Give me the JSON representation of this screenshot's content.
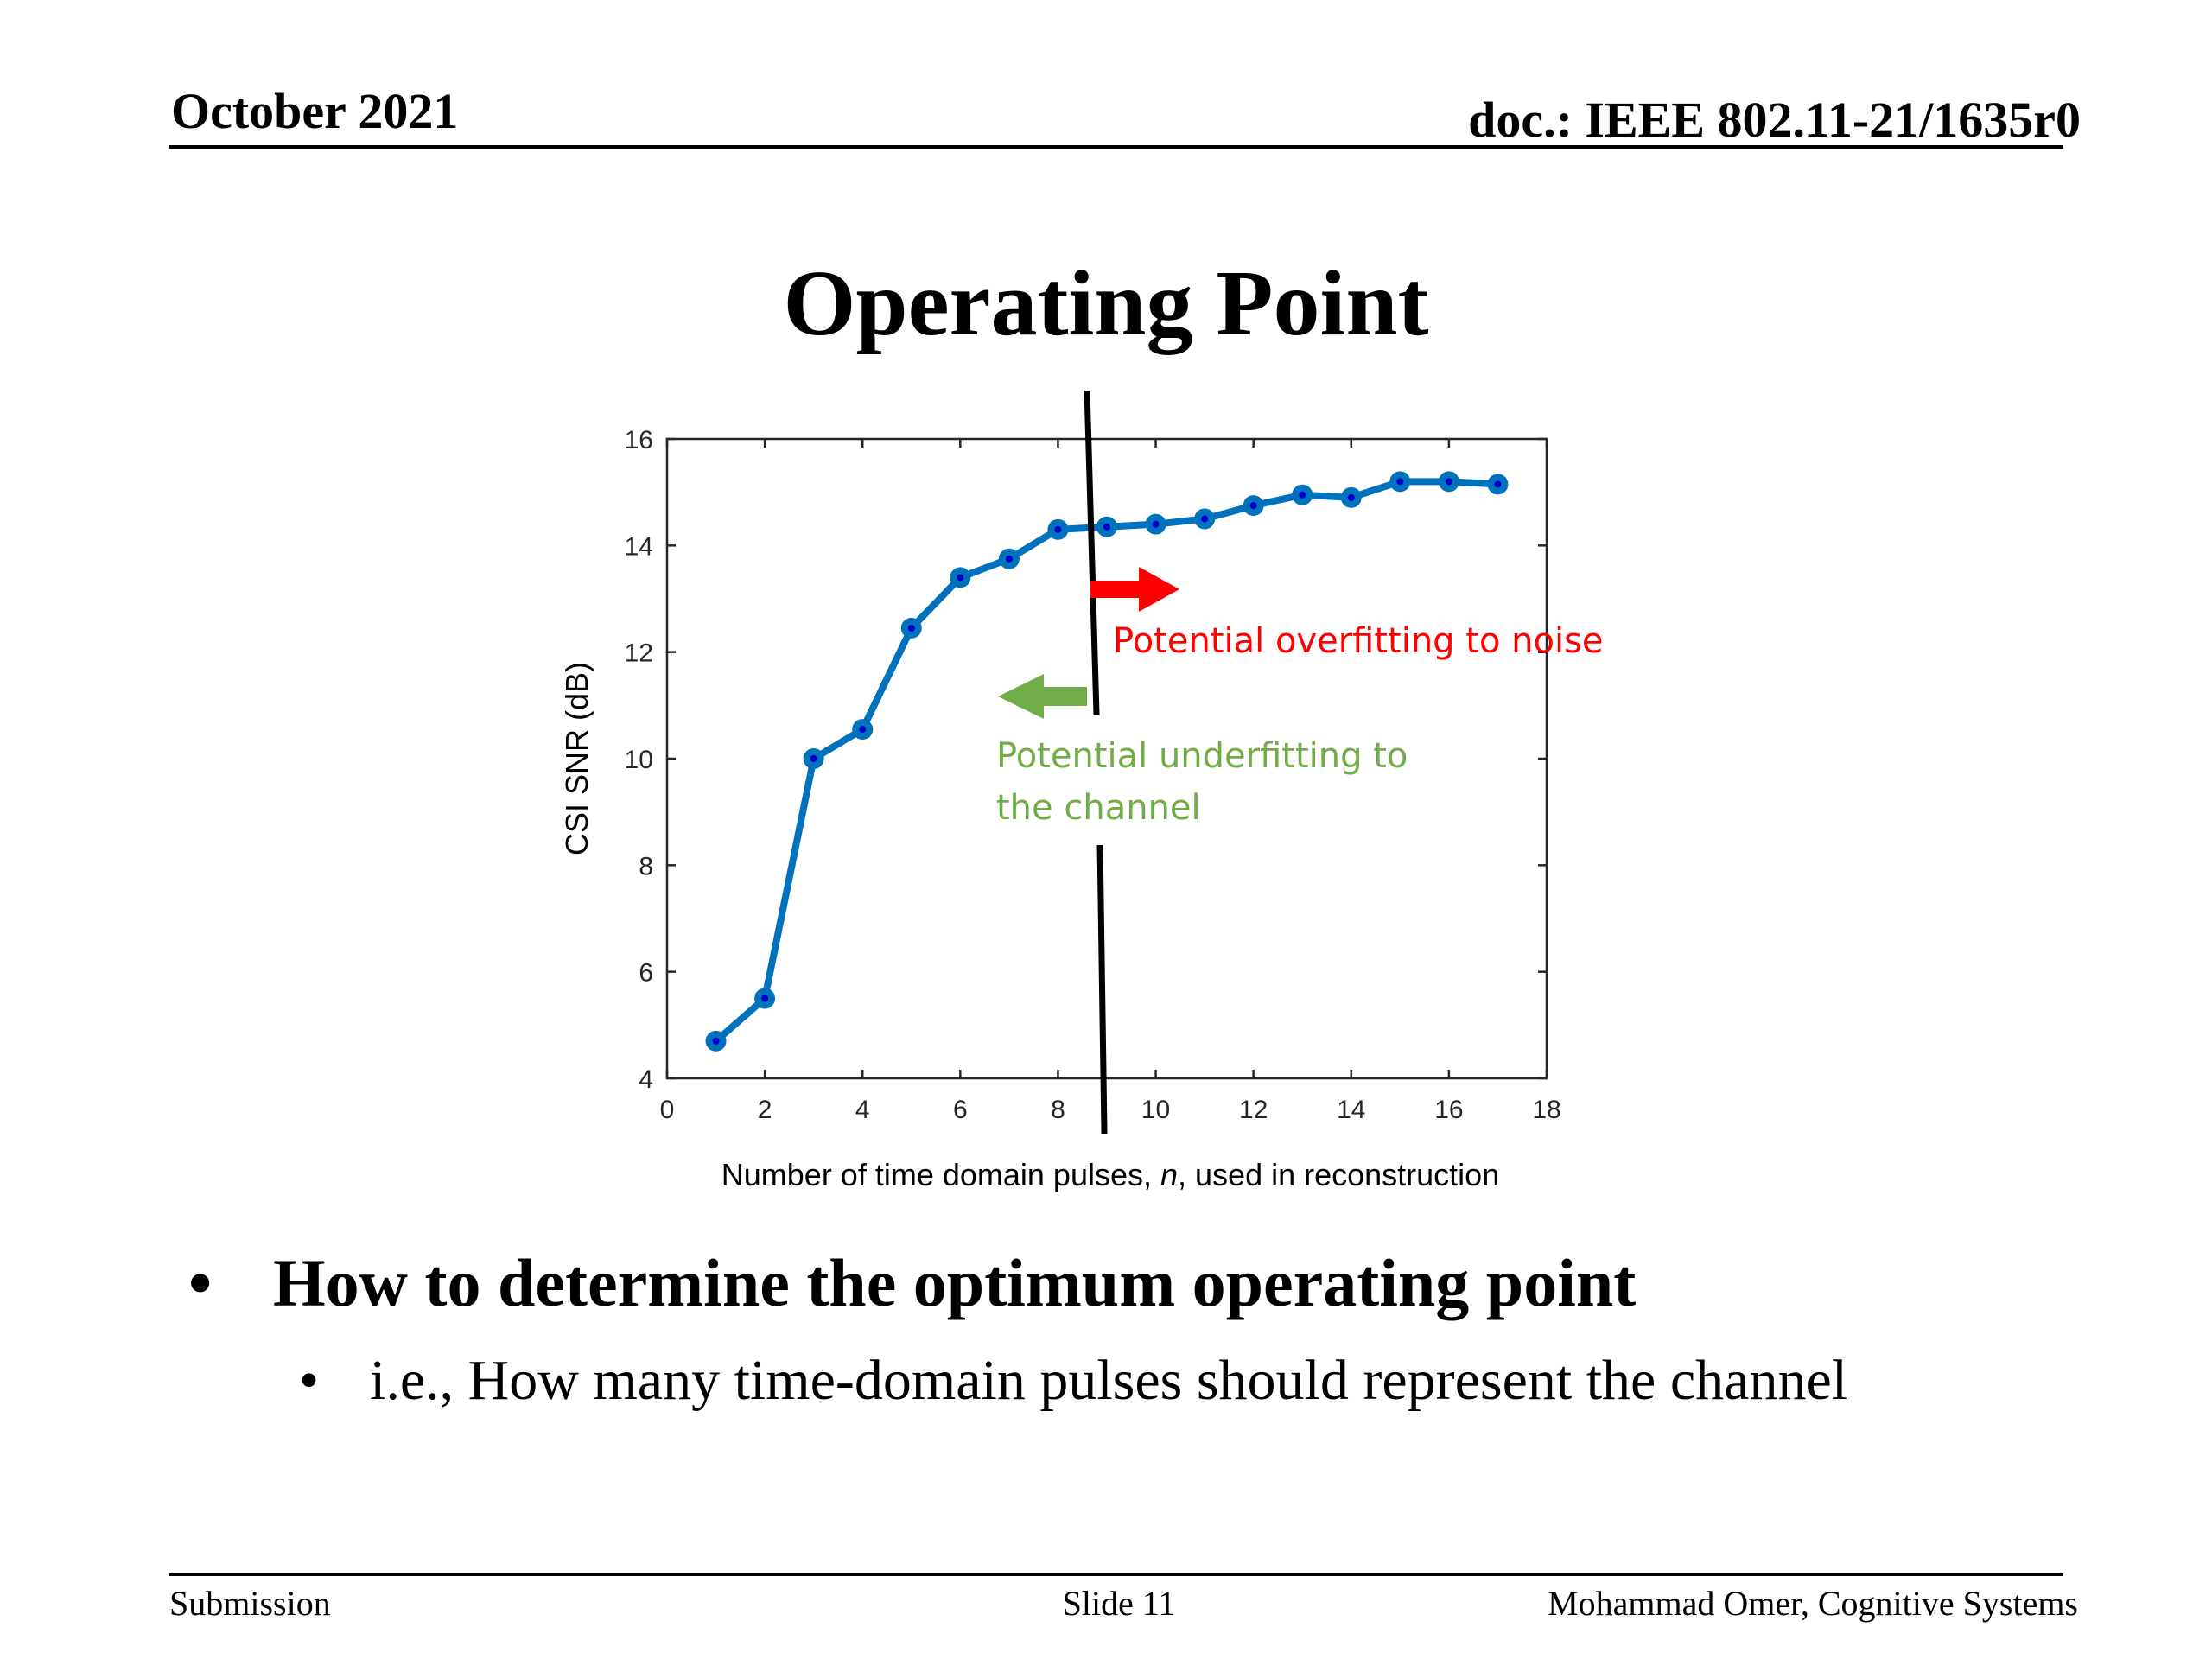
{
  "header": {
    "date": "October 2021",
    "doc_id": "doc.: IEEE 802.11-21/1635r0"
  },
  "slide_title": "Operating Point",
  "chart_data": {
    "type": "line",
    "title": "",
    "xlabel_parts": [
      "Number of time domain pulses, ",
      "n",
      ", used in reconstruction"
    ],
    "ylabel": "CSI SNR (dB)",
    "xlim": [
      0,
      18
    ],
    "ylim": [
      4,
      16
    ],
    "xticks": [
      0,
      2,
      4,
      6,
      8,
      10,
      12,
      14,
      16,
      18
    ],
    "yticks": [
      4,
      6,
      8,
      10,
      12,
      14,
      16
    ],
    "grid": false,
    "series": [
      {
        "color": "#0072bd",
        "x": [
          1,
          2,
          3,
          4,
          5,
          6,
          7,
          8,
          9,
          10,
          11,
          12,
          13,
          14,
          15,
          16,
          17
        ],
        "y": [
          4.7,
          5.5,
          10.0,
          10.55,
          12.45,
          13.4,
          13.75,
          14.3,
          14.35,
          14.4,
          14.5,
          14.75,
          14.95,
          14.9,
          15.2,
          15.2,
          15.15
        ]
      }
    ],
    "divider_x": 8.7,
    "annotations": {
      "overfit": {
        "text": "Potential overfitting to noise",
        "color": "#ff0000"
      },
      "underfit": {
        "lines": [
          "Potential underfitting to",
          "the channel"
        ],
        "color": "#70ad47"
      }
    }
  },
  "bullets": {
    "level1": "How to determine the optimum operating point",
    "level2": "i.e., How many time-domain pulses should represent the channel"
  },
  "footer": {
    "left": "Submission",
    "center": "Slide 11",
    "right": "Mohammad Omer, Cognitive Systems"
  }
}
